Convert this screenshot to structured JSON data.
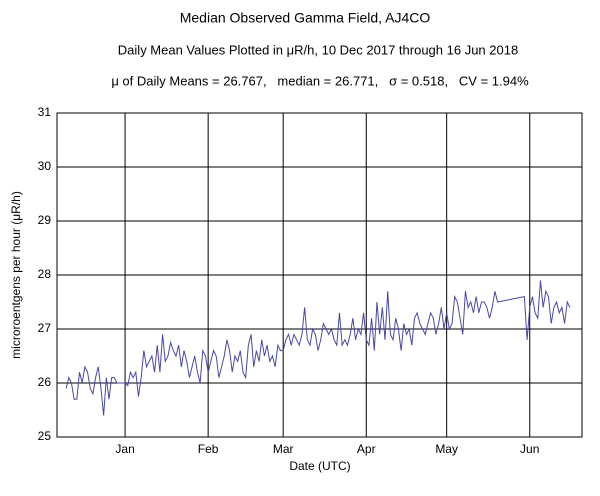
{
  "chart_data": {
    "type": "line",
    "title": "Median Observed Gamma Field, AJ4CO",
    "subtitle": "Daily Mean Values Plotted in μR/h, 10 Dec 2017 through 16 Jun 2018",
    "annotation": "μ of Daily Means = 26.767,   median = 26.771,   σ = 0.518,   CV = 1.94%",
    "y_label": "microroentgens per hour (μR/h)",
    "x_label": "Date (UTC)",
    "color": "#4848a8",
    "grid": true,
    "xlim": [
      -3.4,
      192.5
    ],
    "xticks": [
      {
        "value": 22,
        "label": "Jan"
      },
      {
        "value": 53,
        "label": "Feb"
      },
      {
        "value": 81,
        "label": "Mar"
      },
      {
        "value": 112,
        "label": "Apr"
      },
      {
        "value": 142,
        "label": "May"
      },
      {
        "value": 173,
        "label": "Jun"
      }
    ],
    "ylim": [
      25,
      31
    ],
    "yticks": [
      25,
      26,
      27,
      28,
      29,
      30,
      31
    ],
    "x": [
      0,
      1,
      2,
      3,
      4,
      5,
      6,
      7,
      8,
      9,
      10,
      11,
      12,
      13,
      14,
      15,
      16,
      17,
      18,
      19,
      20,
      21,
      22,
      23,
      24,
      25,
      26,
      27,
      28,
      29,
      30,
      31,
      32,
      33,
      34,
      35,
      36,
      37,
      38,
      39,
      40,
      41,
      42,
      43,
      44,
      45,
      46,
      47,
      48,
      49,
      50,
      51,
      52,
      53,
      54,
      55,
      56,
      57,
      58,
      59,
      60,
      61,
      62,
      63,
      64,
      65,
      66,
      67,
      68,
      69,
      70,
      71,
      72,
      73,
      74,
      75,
      76,
      77,
      78,
      79,
      80,
      81,
      82,
      83,
      84,
      85,
      86,
      87,
      88,
      89,
      90,
      91,
      92,
      93,
      94,
      95,
      96,
      97,
      98,
      99,
      100,
      101,
      102,
      103,
      104,
      105,
      106,
      107,
      108,
      109,
      110,
      111,
      112,
      113,
      114,
      115,
      116,
      117,
      118,
      119,
      120,
      121,
      122,
      123,
      124,
      125,
      126,
      127,
      128,
      129,
      130,
      131,
      132,
      133,
      134,
      135,
      136,
      137,
      138,
      139,
      140,
      141,
      142,
      143,
      144,
      145,
      146,
      147,
      148,
      149,
      150,
      151,
      152,
      153,
      154,
      155,
      156,
      157,
      158,
      159,
      160,
      161,
      171,
      172,
      173,
      174,
      175,
      176,
      177,
      178,
      179,
      180,
      181,
      182,
      183,
      184,
      185,
      186,
      187,
      188
    ],
    "values": [
      25.9,
      26.1,
      26.0,
      25.7,
      25.7,
      26.2,
      26.0,
      26.3,
      26.2,
      25.9,
      25.8,
      26.1,
      26.3,
      25.9,
      25.4,
      26.1,
      25.7,
      26.1,
      26.1,
      26.0,
      26.0,
      26.0,
      26.0,
      25.95,
      26.2,
      26.1,
      26.2,
      25.75,
      26.1,
      26.6,
      26.3,
      26.4,
      26.5,
      26.2,
      26.7,
      26.2,
      26.9,
      26.4,
      26.5,
      26.75,
      26.6,
      26.5,
      26.7,
      26.3,
      26.6,
      26.4,
      26.1,
      26.3,
      26.5,
      26.2,
      26.0,
      26.6,
      26.5,
      26.2,
      26.4,
      26.6,
      26.5,
      26.1,
      26.3,
      26.5,
      26.8,
      26.6,
      26.2,
      26.5,
      26.4,
      26.6,
      26.2,
      26.1,
      26.7,
      26.9,
      26.3,
      26.6,
      26.4,
      26.8,
      26.5,
      26.7,
      26.4,
      26.5,
      26.3,
      26.7,
      26.6,
      26.6,
      26.8,
      26.9,
      26.7,
      26.9,
      26.8,
      26.7,
      26.9,
      27.4,
      26.8,
      26.7,
      27.0,
      26.9,
      26.6,
      26.8,
      27.1,
      27.0,
      26.9,
      27.0,
      26.8,
      26.7,
      27.3,
      26.7,
      26.8,
      26.7,
      26.9,
      27.2,
      26.8,
      27.0,
      26.9,
      27.3,
      26.8,
      26.7,
      27.2,
      26.6,
      27.5,
      26.9,
      27.4,
      26.8,
      27.7,
      26.9,
      26.8,
      27.2,
      27.0,
      26.6,
      27.1,
      26.9,
      27.0,
      26.7,
      27.2,
      27.3,
      27.1,
      27.0,
      26.9,
      27.1,
      27.3,
      27.2,
      26.9,
      27.1,
      27.4,
      27.0,
      27.3,
      27.0,
      27.1,
      27.6,
      27.5,
      27.2,
      26.9,
      27.7,
      27.4,
      27.5,
      27.3,
      27.6,
      27.3,
      27.5,
      27.5,
      27.4,
      27.2,
      27.4,
      27.7,
      27.5,
      27.6,
      26.8,
      27.4,
      27.6,
      27.3,
      27.2,
      27.9,
      27.4,
      27.7,
      27.6,
      27.1,
      27.4,
      27.5,
      27.3,
      27.4,
      27.1,
      27.5,
      27.4
    ]
  }
}
